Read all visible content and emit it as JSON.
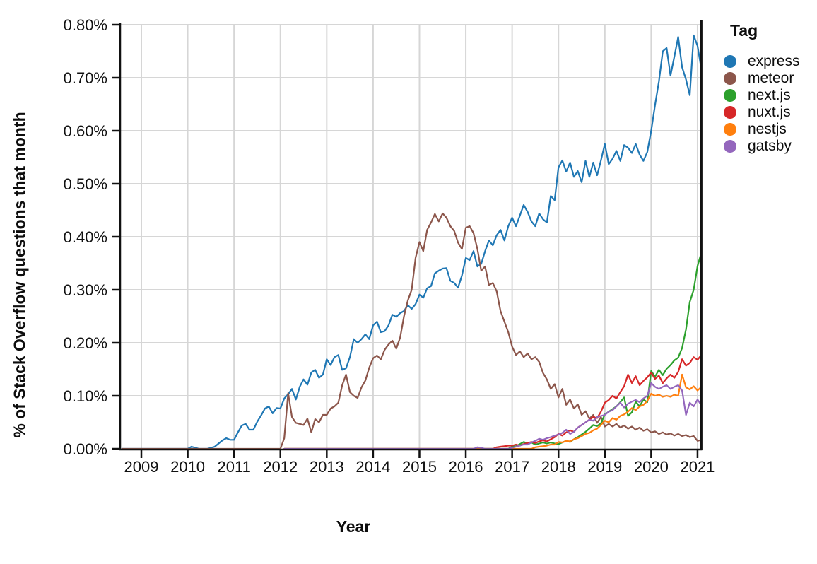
{
  "chart_data": {
    "type": "line",
    "title": "",
    "xlabel": "Year",
    "ylabel": "% of Stack Overflow questions that month",
    "legend_title": "Tag",
    "legend_position": "right",
    "grid": true,
    "xlim": [
      2008.54,
      2021.16
    ],
    "ylim": [
      0,
      0.8
    ],
    "x_ticks": [
      2009,
      2010,
      2011,
      2012,
      2013,
      2014,
      2015,
      2016,
      2017,
      2018,
      2019,
      2020,
      2021
    ],
    "x_tick_labels": [
      "2009",
      "2010",
      "2011",
      "2012",
      "2013",
      "2014",
      "2015",
      "2016",
      "2017",
      "2018",
      "2019",
      "2020",
      "2021"
    ],
    "y_ticks": [
      0.0,
      0.1,
      0.2,
      0.3,
      0.4,
      0.5,
      0.6,
      0.7,
      0.8
    ],
    "y_tick_labels": [
      "0.00%",
      "0.10%",
      "0.20%",
      "0.30%",
      "0.40%",
      "0.50%",
      "0.60%",
      "0.70%",
      "0.80%"
    ],
    "grid_color": "#d6d6d6",
    "axis_color": "#111111",
    "points_per_year": 12,
    "end_marker_line_x": 2021.083,
    "series": [
      {
        "name": "express",
        "color": "#1f77b4",
        "start_year": 2008.5833,
        "values": [
          0,
          0,
          0,
          0,
          0,
          0,
          0,
          0,
          0,
          0,
          0,
          0,
          0,
          0,
          0,
          0,
          0,
          0,
          0.004,
          0.002,
          0,
          0,
          0,
          0.002,
          0.004,
          0.01,
          0.016,
          0.02,
          0.017,
          0.017,
          0.031,
          0.044,
          0.047,
          0.036,
          0.036,
          0.051,
          0.063,
          0.076,
          0.08,
          0.067,
          0.077,
          0.076,
          0.095,
          0.103,
          0.113,
          0.093,
          0.117,
          0.131,
          0.121,
          0.144,
          0.149,
          0.134,
          0.14,
          0.169,
          0.158,
          0.173,
          0.177,
          0.149,
          0.152,
          0.173,
          0.207,
          0.2,
          0.207,
          0.216,
          0.207,
          0.233,
          0.24,
          0.22,
          0.222,
          0.233,
          0.253,
          0.249,
          0.256,
          0.26,
          0.271,
          0.264,
          0.273,
          0.291,
          0.285,
          0.303,
          0.307,
          0.331,
          0.336,
          0.34,
          0.341,
          0.317,
          0.313,
          0.304,
          0.327,
          0.36,
          0.356,
          0.373,
          0.344,
          0.349,
          0.373,
          0.393,
          0.384,
          0.403,
          0.413,
          0.393,
          0.42,
          0.436,
          0.42,
          0.44,
          0.46,
          0.447,
          0.429,
          0.42,
          0.444,
          0.433,
          0.427,
          0.477,
          0.469,
          0.531,
          0.544,
          0.523,
          0.54,
          0.513,
          0.524,
          0.503,
          0.543,
          0.513,
          0.54,
          0.516,
          0.544,
          0.575,
          0.537,
          0.547,
          0.562,
          0.543,
          0.573,
          0.568,
          0.558,
          0.575,
          0.555,
          0.543,
          0.56,
          0.6,
          0.648,
          0.693,
          0.75,
          0.756,
          0.704,
          0.74,
          0.777,
          0.72,
          0.697,
          0.667,
          0.78,
          0.76,
          0.716
        ]
      },
      {
        "name": "meteor",
        "color": "#8c564b",
        "start_year": 2008.5833,
        "values": [
          0,
          0,
          0,
          0,
          0,
          0,
          0,
          0,
          0,
          0,
          0,
          0,
          0,
          0,
          0,
          0,
          0,
          0,
          0,
          0,
          0,
          0,
          0,
          0,
          0,
          0,
          0,
          0,
          0,
          0,
          0,
          0,
          0,
          0,
          0,
          0,
          0,
          0,
          0,
          0,
          0,
          0,
          0.02,
          0.105,
          0.06,
          0.049,
          0.047,
          0.045,
          0.057,
          0.031,
          0.056,
          0.05,
          0.064,
          0.064,
          0.076,
          0.08,
          0.087,
          0.12,
          0.14,
          0.107,
          0.1,
          0.096,
          0.116,
          0.129,
          0.153,
          0.171,
          0.176,
          0.169,
          0.187,
          0.197,
          0.204,
          0.189,
          0.21,
          0.25,
          0.28,
          0.3,
          0.36,
          0.39,
          0.373,
          0.413,
          0.427,
          0.443,
          0.429,
          0.444,
          0.436,
          0.42,
          0.411,
          0.389,
          0.377,
          0.417,
          0.42,
          0.407,
          0.377,
          0.336,
          0.344,
          0.309,
          0.313,
          0.297,
          0.26,
          0.24,
          0.22,
          0.193,
          0.177,
          0.184,
          0.173,
          0.18,
          0.169,
          0.173,
          0.164,
          0.143,
          0.131,
          0.113,
          0.122,
          0.097,
          0.113,
          0.083,
          0.093,
          0.076,
          0.084,
          0.064,
          0.071,
          0.057,
          0.064,
          0.049,
          0.06,
          0.042,
          0.047,
          0.042,
          0.047,
          0.04,
          0.044,
          0.038,
          0.042,
          0.036,
          0.04,
          0.034,
          0.037,
          0.031,
          0.033,
          0.028,
          0.031,
          0.027,
          0.029,
          0.025,
          0.028,
          0.024,
          0.026,
          0.022,
          0.024,
          0.015,
          0.017
        ]
      },
      {
        "name": "next.js",
        "color": "#2ca02c",
        "start_year": 2012.0833,
        "values": [
          0,
          0,
          0,
          0,
          0,
          0,
          0,
          0,
          0,
          0,
          0,
          0,
          0,
          0,
          0,
          0,
          0,
          0,
          0,
          0,
          0,
          0,
          0,
          0,
          0,
          0,
          0,
          0,
          0,
          0,
          0,
          0,
          0,
          0,
          0,
          0,
          0,
          0,
          0,
          0,
          0,
          0,
          0,
          0,
          0,
          0,
          0,
          0,
          0,
          0,
          0,
          0,
          0,
          0,
          0,
          0,
          0,
          0,
          0,
          0.004,
          0.005,
          0.009,
          0.013,
          0.01,
          0.012,
          0.008,
          0.01,
          0.012,
          0.01,
          0.012,
          0.01,
          0.009,
          0.012,
          0.015,
          0.013,
          0.018,
          0.022,
          0.027,
          0.032,
          0.038,
          0.045,
          0.043,
          0.048,
          0.065,
          0.07,
          0.075,
          0.08,
          0.088,
          0.097,
          0.062,
          0.069,
          0.089,
          0.08,
          0.093,
          0.088,
          0.147,
          0.136,
          0.149,
          0.139,
          0.151,
          0.158,
          0.167,
          0.172,
          0.19,
          0.225,
          0.277,
          0.3,
          0.345,
          0.37
        ]
      },
      {
        "name": "nuxt.js",
        "color": "#d62728",
        "start_year": 2012.0833,
        "values": [
          0,
          0,
          0,
          0,
          0,
          0,
          0,
          0,
          0,
          0,
          0,
          0,
          0,
          0,
          0,
          0,
          0,
          0,
          0,
          0,
          0,
          0,
          0,
          0,
          0,
          0,
          0,
          0,
          0,
          0,
          0,
          0,
          0,
          0,
          0,
          0,
          0,
          0,
          0,
          0,
          0,
          0,
          0,
          0,
          0,
          0,
          0,
          0,
          0,
          0,
          0,
          0,
          0,
          0,
          0,
          0.003,
          0.004,
          0.005,
          0.006,
          0.006,
          0.008,
          0.006,
          0.009,
          0.011,
          0.013,
          0.011,
          0.014,
          0.016,
          0.014,
          0.018,
          0.022,
          0.028,
          0.025,
          0.031,
          0.035,
          0.032,
          0.04,
          0.045,
          0.05,
          0.055,
          0.06,
          0.058,
          0.07,
          0.087,
          0.092,
          0.1,
          0.095,
          0.107,
          0.118,
          0.14,
          0.124,
          0.137,
          0.12,
          0.128,
          0.135,
          0.144,
          0.132,
          0.138,
          0.124,
          0.133,
          0.14,
          0.134,
          0.145,
          0.169,
          0.157,
          0.162,
          0.173,
          0.168,
          0.177
        ]
      },
      {
        "name": "nestjs",
        "color": "#ff7f0e",
        "start_year": 2012.0833,
        "values": [
          0,
          0,
          0,
          0,
          0,
          0,
          0,
          0,
          0,
          0,
          0,
          0,
          0,
          0,
          0,
          0,
          0,
          0,
          0,
          0,
          0,
          0,
          0,
          0,
          0,
          0,
          0,
          0,
          0,
          0,
          0,
          0,
          0,
          0,
          0,
          0,
          0,
          0,
          0,
          0,
          0,
          0,
          0,
          0,
          0,
          0,
          0,
          0,
          0,
          0,
          0,
          0,
          0,
          0,
          0,
          0,
          0,
          0,
          0,
          0,
          0,
          0,
          0,
          0,
          0,
          0.003,
          0.004,
          0.005,
          0.006,
          0.008,
          0.008,
          0.013,
          0.012,
          0.015,
          0.014,
          0.018,
          0.02,
          0.024,
          0.028,
          0.03,
          0.035,
          0.038,
          0.045,
          0.053,
          0.05,
          0.058,
          0.055,
          0.062,
          0.065,
          0.07,
          0.077,
          0.073,
          0.08,
          0.083,
          0.09,
          0.104,
          0.1,
          0.102,
          0.098,
          0.1,
          0.098,
          0.102,
          0.1,
          0.14,
          0.116,
          0.112,
          0.118,
          0.11,
          0.117
        ]
      },
      {
        "name": "gatsby",
        "color": "#9467bd",
        "start_year": 2012.0833,
        "values": [
          0,
          0,
          0,
          0,
          0,
          0,
          0,
          0,
          0,
          0,
          0,
          0,
          0,
          0,
          0,
          0,
          0,
          0,
          0,
          0,
          0,
          0,
          0,
          0,
          0,
          0,
          0,
          0,
          0,
          0,
          0,
          0,
          0,
          0,
          0,
          0,
          0,
          0,
          0,
          0,
          0,
          0,
          0,
          0,
          0,
          0,
          0,
          0,
          0,
          0,
          0.003,
          0.002,
          0,
          0,
          0,
          0,
          0,
          0,
          0,
          0.002,
          0.004,
          0.006,
          0.008,
          0.008,
          0.012,
          0.015,
          0.019,
          0.017,
          0.02,
          0.022,
          0.025,
          0.027,
          0.03,
          0.036,
          0.028,
          0.032,
          0.04,
          0.045,
          0.05,
          0.055,
          0.053,
          0.06,
          0.062,
          0.064,
          0.07,
          0.073,
          0.08,
          0.087,
          0.078,
          0.085,
          0.089,
          0.092,
          0.088,
          0.095,
          0.1,
          0.124,
          0.117,
          0.113,
          0.117,
          0.12,
          0.113,
          0.117,
          0.12,
          0.11,
          0.064,
          0.087,
          0.08,
          0.093,
          0.082
        ]
      }
    ]
  }
}
